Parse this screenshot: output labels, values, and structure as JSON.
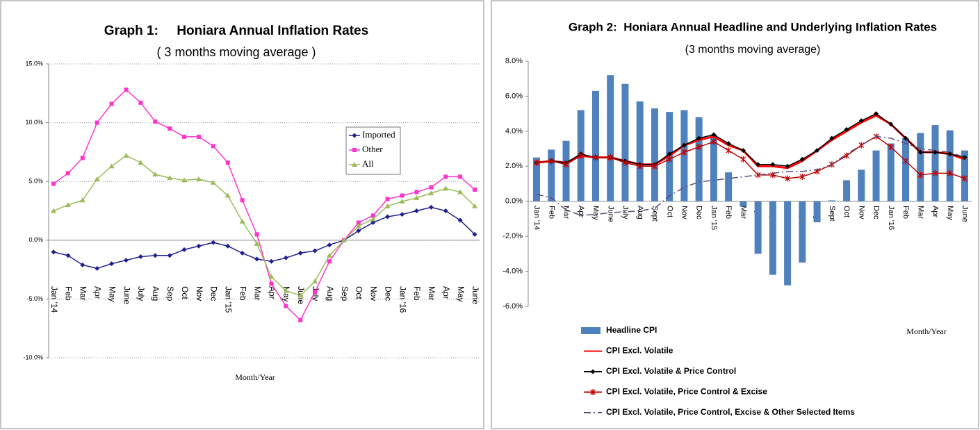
{
  "chart_data": [
    {
      "type": "line",
      "title": "Graph 1:     Honiara Annual Inflation Rates",
      "subtitle": "( 3 months moving average )",
      "x_label": "Month/Year",
      "categories": [
        "Jan '14",
        "Feb",
        "Mar",
        "Apr",
        "May",
        "June",
        "July",
        "Aug",
        "Sep",
        "Oct",
        "Nov",
        "Dec",
        "Jan '15",
        "Feb",
        "Mar",
        "Apr",
        "May",
        "June",
        "July",
        "Aug",
        "Sep",
        "Oct",
        "Nov",
        "Dec",
        "Jan '16",
        "Feb",
        "Mar",
        "Apr",
        "May",
        "June"
      ],
      "ylim": [
        -10,
        15
      ],
      "yticks": [
        {
          "value": -10,
          "label": "-10.0%"
        },
        {
          "value": -5,
          "label": "-5.0%"
        },
        {
          "value": 0,
          "label": "0.0%"
        },
        {
          "value": 5,
          "label": "5.0%"
        },
        {
          "value": 10,
          "label": "10.0%"
        },
        {
          "value": 15,
          "label": "15.0%"
        }
      ],
      "grid": true,
      "legend": "right",
      "series": [
        {
          "name": "Imported",
          "color": "#1f1f8f",
          "marker": "diamond",
          "values": [
            -1.0,
            -1.3,
            -2.1,
            -2.4,
            -2.0,
            -1.7,
            -1.4,
            -1.3,
            -1.3,
            -0.8,
            -0.5,
            -0.2,
            -0.5,
            -1.1,
            -1.6,
            -1.8,
            -1.5,
            -1.1,
            -0.9,
            -0.4,
            0,
            0.8,
            1.5,
            2.0,
            2.2,
            2.5,
            2.8,
            2.5,
            1.7,
            0.5
          ]
        },
        {
          "name": "Other",
          "color": "#ff33cc",
          "marker": "square",
          "values": [
            4.8,
            5.7,
            7.0,
            10.0,
            11.6,
            12.8,
            11.7,
            10.1,
            9.5,
            8.8,
            8.8,
            8.0,
            6.6,
            3.4,
            0.5,
            -3.7,
            -5.6,
            -6.8,
            -4.4,
            -1.8,
            0,
            1.5,
            2.1,
            3.5,
            3.8,
            4.1,
            4.5,
            5.4,
            5.4,
            4.3
          ]
        },
        {
          "name": "All",
          "color": "#9bbb59",
          "marker": "triangle",
          "values": [
            2.5,
            3.0,
            3.4,
            5.2,
            6.3,
            7.2,
            6.6,
            5.6,
            5.3,
            5.1,
            5.2,
            4.9,
            3.8,
            1.6,
            -0.3,
            -3.1,
            -4.3,
            -4.7,
            -3.5,
            -1.3,
            0,
            1.2,
            1.8,
            2.9,
            3.3,
            3.6,
            4.0,
            4.4,
            4.1,
            2.9
          ]
        }
      ]
    },
    {
      "type": "combo",
      "title": "Graph 2:  Honiara Annual Headline and Underlying Inflation Rates",
      "subtitle": "(3 months moving average)",
      "x_label": "Month/Year",
      "categories": [
        "Jan '14",
        "Feb",
        "Mar",
        "Apr",
        "May",
        "June",
        "July",
        "Aug",
        "Sept",
        "Oct",
        "Nov",
        "Dec",
        "Jan '15",
        "Feb",
        "Mar",
        "Apr",
        "May",
        "June",
        "July",
        "Aug",
        "Sept",
        "Oct",
        "Nov",
        "Dec",
        "Jan '16",
        "Feb",
        "Mar",
        "Apr",
        "May",
        "June"
      ],
      "ylim": [
        -6,
        8
      ],
      "yticks": [
        {
          "value": -6,
          "label": "-6.0%"
        },
        {
          "value": -4,
          "label": "-4.0%"
        },
        {
          "value": -2,
          "label": "-2.0%"
        },
        {
          "value": 0,
          "label": "0.0%"
        },
        {
          "value": 2,
          "label": "2.0%"
        },
        {
          "value": 4,
          "label": "4.0%"
        },
        {
          "value": 6,
          "label": "6.0%"
        },
        {
          "value": 8,
          "label": "8.0%"
        }
      ],
      "grid": false,
      "legend": "bottom",
      "series": [
        {
          "name": "Headline CPI",
          "type": "bar",
          "color": "#4f81bd",
          "values": [
            2.5,
            2.95,
            3.45,
            5.2,
            6.3,
            7.2,
            6.7,
            5.7,
            5.3,
            5.1,
            5.2,
            4.8,
            3.8,
            1.65,
            -0.3,
            -3.0,
            -4.2,
            -4.8,
            -3.5,
            -1.2,
            0.05,
            1.2,
            1.8,
            2.9,
            3.3,
            3.6,
            3.9,
            4.35,
            4.05,
            2.9
          ]
        },
        {
          "name": "CPI Excl. Volatile",
          "type": "line",
          "color": "#ff0000",
          "marker": "none",
          "values": [
            2.2,
            2.3,
            2.2,
            2.6,
            2.5,
            2.5,
            2.3,
            2.1,
            2.1,
            2.6,
            3.2,
            3.5,
            3.7,
            3.2,
            2.9,
            2.0,
            2.0,
            1.9,
            2.3,
            2.9,
            3.5,
            4.0,
            4.5,
            4.9,
            4.4,
            3.6,
            2.8,
            2.8,
            2.7,
            2.4
          ]
        },
        {
          "name": "CPI Excl. Volatile & Price Control",
          "type": "line",
          "color": "#000000",
          "marker": "diamond",
          "values": [
            2.2,
            2.3,
            2.2,
            2.7,
            2.5,
            2.5,
            2.3,
            2.1,
            2.1,
            2.7,
            3.2,
            3.6,
            3.8,
            3.3,
            2.9,
            2.1,
            2.1,
            2.0,
            2.4,
            2.9,
            3.6,
            4.1,
            4.6,
            5.0,
            4.4,
            3.6,
            2.8,
            2.8,
            2.7,
            2.5
          ]
        },
        {
          "name": "CPI Excl. Volatile, Price Control & Excise",
          "type": "line",
          "color": "#c00000",
          "marker": "asterisk",
          "values": [
            2.2,
            2.3,
            2.1,
            2.6,
            2.5,
            2.5,
            2.2,
            2.0,
            2.0,
            2.4,
            2.8,
            3.1,
            3.4,
            2.9,
            2.4,
            1.5,
            1.5,
            1.3,
            1.4,
            1.7,
            2.1,
            2.6,
            3.2,
            3.7,
            3.1,
            2.3,
            1.5,
            1.6,
            1.6,
            1.3
          ]
        },
        {
          "name": "CPI Excl. Volatile, Price Control, Excise & Other Selected Items",
          "type": "line",
          "color": "#604a7b",
          "marker": "none",
          "dash": "dashdot",
          "values": [
            0.4,
            0.2,
            -0.5,
            -0.8,
            -0.75,
            -0.65,
            -0.6,
            -0.55,
            -0.4,
            0.3,
            0.8,
            1.1,
            1.2,
            1.3,
            1.4,
            1.5,
            1.6,
            1.7,
            1.7,
            1.8,
            2.1,
            2.7,
            3.2,
            3.7,
            3.6,
            3.3,
            3.0,
            2.9,
            2.8,
            2.5
          ]
        }
      ]
    }
  ]
}
